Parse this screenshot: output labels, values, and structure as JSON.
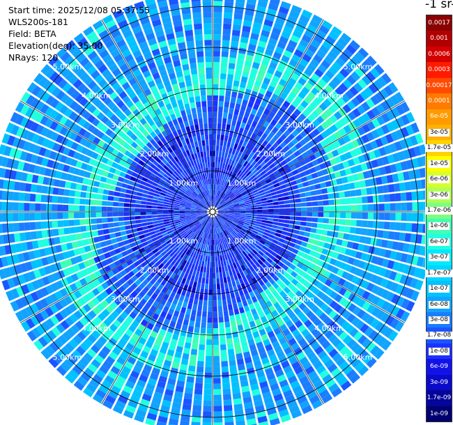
{
  "header": {
    "start_time": "Start time: 2025/12/08 05:37:55",
    "device": "WLS200s-181",
    "field": "Field: BETA",
    "elevation": "Elevation(deg): 35.00",
    "nrays": "NRays: 120"
  },
  "colorbar": {
    "title": "-1 sr-",
    "labels": [
      "0.0017",
      "0.001",
      "0.0006",
      "0.0003",
      "0.00017",
      "0.0001",
      "6e-05",
      "3e-05",
      "1.7e-05",
      "1e-05",
      "6e-06",
      "3e-06",
      "1.7e-06",
      "1e-06",
      "6e-07",
      "3e-07",
      "1.7e-07",
      "1e-07",
      "6e-08",
      "3e-08",
      "1.7e-08",
      "1e-08",
      "6e-09",
      "3e-09",
      "1.7e-09",
      "1e-09"
    ],
    "colors": [
      "#8b0000",
      "#b20000",
      "#d40000",
      "#ff1a00",
      "#ff4a00",
      "#ff7a00",
      "#ff9a00",
      "#ffb000",
      "#ffd200",
      "#ffff00",
      "#d8ff2a",
      "#b0ff55",
      "#7cff7c",
      "#40ffb5",
      "#20ffe0",
      "#00e8ff",
      "#00d5ff",
      "#00c2ff",
      "#10a4ff",
      "#1a7dff",
      "#1b55ff",
      "#1a33ff",
      "#1212e8",
      "#0a0ac8",
      "#05059a",
      "#000070"
    ],
    "text_colors": [
      "#ffffff",
      "#ffffff",
      "#ffffff",
      "#ffffff",
      "#ffffff",
      "#ffffff",
      "#ffffff",
      "#000000",
      "#000000",
      "#000000",
      "#000000",
      "#000000",
      "#000000",
      "#000000",
      "#000000",
      "#000000",
      "#000000",
      "#000000",
      "#000000",
      "#000000",
      "#000000",
      "#000000",
      "#ffffff",
      "#ffffff",
      "#ffffff",
      "#ffffff"
    ]
  },
  "chart_data": {
    "type": "heatmap",
    "projection": "polar-ppi",
    "field": "BETA",
    "n_rays": 120,
    "range_km_max": 5.4,
    "range_rings_km": [
      1,
      2,
      3,
      4,
      5
    ],
    "range_labels": [
      "1.00km",
      "2.00km",
      "3.00km",
      "4.00km",
      "5.00km"
    ],
    "azimuth_lines_deg": [
      0,
      30,
      60,
      90,
      120,
      150,
      180,
      210,
      240,
      270,
      300,
      330
    ],
    "grid": true,
    "background_level": "3e-08",
    "near_range_level": "1e-08",
    "enhanced_ring_level": "1e-07"
  }
}
